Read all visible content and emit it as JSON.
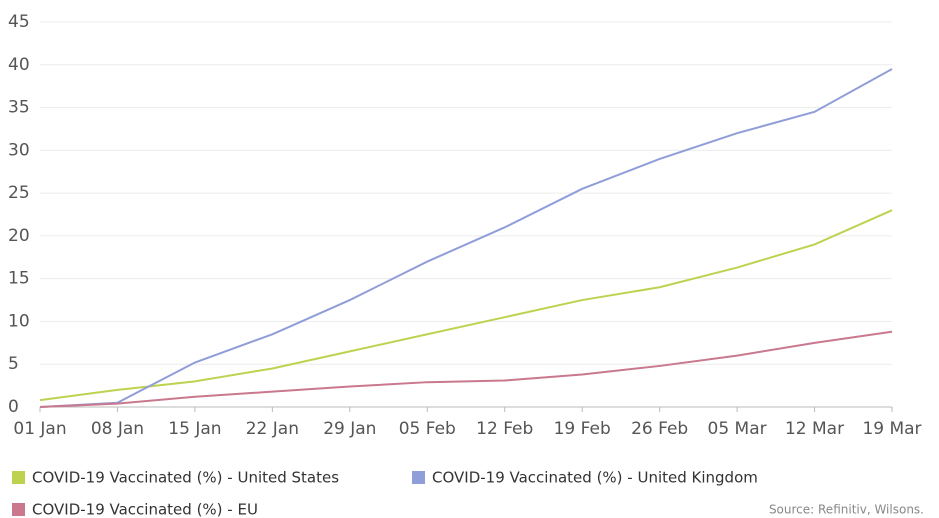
{
  "chart_data": {
    "type": "line",
    "x": [
      "01 Jan",
      "08 Jan",
      "15 Jan",
      "22 Jan",
      "29 Jan",
      "05 Feb",
      "12 Feb",
      "19 Feb",
      "26 Feb",
      "05 Mar",
      "12 Mar",
      "19 Mar"
    ],
    "series": [
      {
        "name": "COVID-19 Vaccinated (%) - United States",
        "color": "#bfd250",
        "values": [
          0.8,
          2.0,
          3.0,
          4.5,
          6.5,
          8.5,
          10.5,
          12.5,
          14.0,
          16.3,
          19.0,
          23.0
        ]
      },
      {
        "name": "COVID-19 Vaccinated (%) - United Kingdom",
        "color": "#8f9ed8",
        "values": [
          0,
          0.5,
          5.2,
          8.5,
          12.5,
          17.0,
          21.0,
          25.5,
          29.0,
          32.0,
          34.5,
          39.5
        ]
      },
      {
        "name": "COVID-19 Vaccinated (%) - EU",
        "color": "#c9788e",
        "values": [
          0,
          0.4,
          1.2,
          1.8,
          2.4,
          2.9,
          3.1,
          3.8,
          4.8,
          6.0,
          7.5,
          8.8
        ]
      }
    ],
    "ylim": [
      0,
      45
    ],
    "yticks": [
      0,
      5,
      10,
      15,
      20,
      25,
      30,
      35,
      40,
      45
    ],
    "grid": true,
    "legend": "bottom",
    "source": "Source: Refinitiv, Wilsons."
  }
}
